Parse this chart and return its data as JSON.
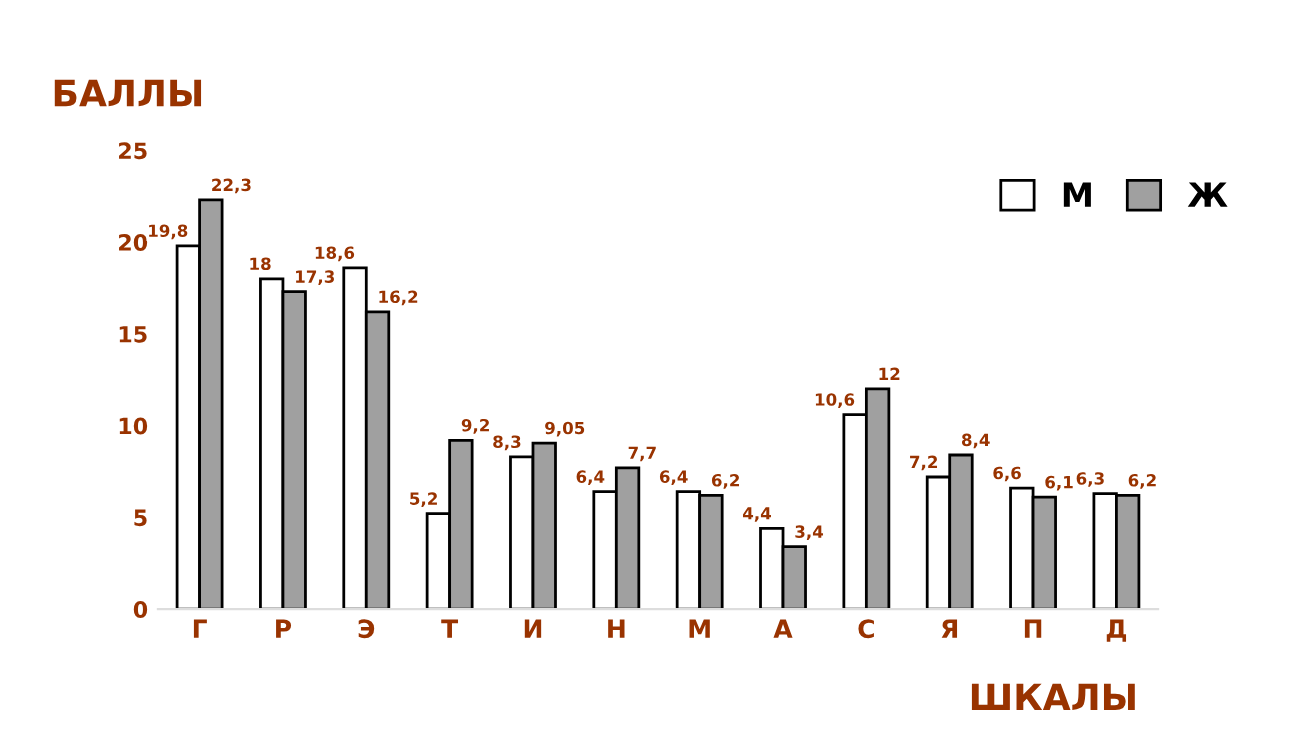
{
  "chart_data": {
    "type": "bar",
    "ylabel": "БАЛЛЫ",
    "xlabel": "ШКАЛЫ",
    "categories": [
      "Г",
      "Р",
      "Э",
      "Т",
      "И",
      "Н",
      "М",
      "А",
      "С",
      "Я",
      "П",
      "Д"
    ],
    "series": [
      {
        "name": "М",
        "color": "#ffffff",
        "values": [
          19.8,
          18,
          18.6,
          5.2,
          8.3,
          6.4,
          6.4,
          4.4,
          10.6,
          7.2,
          6.6,
          6.3
        ],
        "value_labels": [
          "19,8",
          "18",
          "18,6",
          "5,2",
          "8,3",
          "6,4",
          "6,4",
          "4,4",
          "10,6",
          "7,2",
          "6,6",
          "6,3"
        ]
      },
      {
        "name": "Ж",
        "color": "#a0a0a0",
        "values": [
          22.3,
          17.3,
          16.2,
          9.2,
          9.05,
          7.7,
          6.2,
          3.4,
          12,
          8.4,
          6.1,
          6.2
        ],
        "value_labels": [
          "22,3",
          "17,3",
          "16,2",
          "9,2",
          "9,05",
          "7,7",
          "6,2",
          "3,4",
          "12",
          "8,4",
          "6,1",
          "6,2"
        ]
      }
    ],
    "ylim": [
      0,
      25
    ],
    "yticks": [
      0,
      5,
      10,
      15,
      20,
      25
    ],
    "grid": false,
    "legend": "top right"
  }
}
